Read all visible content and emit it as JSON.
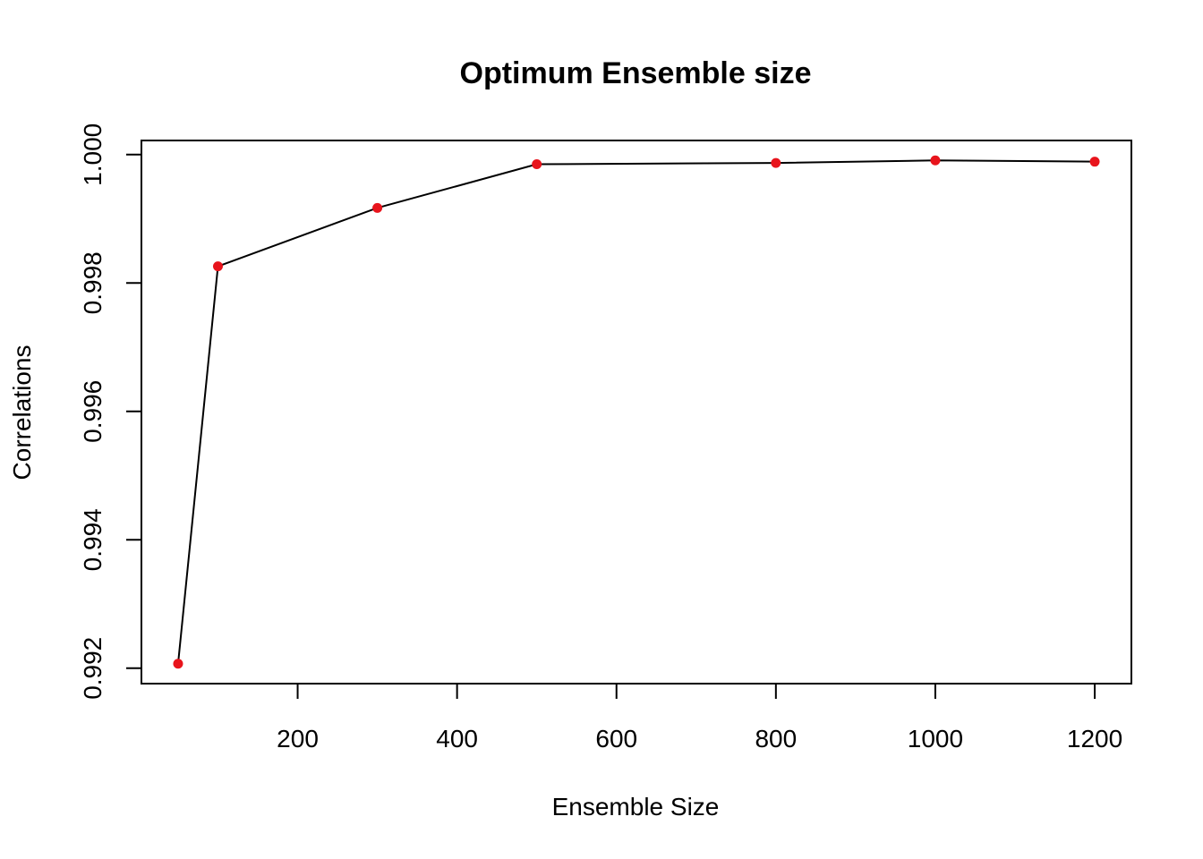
{
  "chart_data": {
    "type": "line",
    "title": "Optimum Ensemble size",
    "xlabel": "Ensemble Size",
    "ylabel": "Correlations",
    "x": [
      50,
      100,
      300,
      500,
      800,
      1000,
      1200
    ],
    "y": [
      0.99207,
      0.99826,
      0.99917,
      0.99985,
      0.99987,
      0.99991,
      0.99989
    ],
    "xlim": [
      4,
      1246
    ],
    "ylim": [
      0.99176,
      1.00022
    ],
    "xticks": [
      200,
      400,
      600,
      800,
      1000,
      1200
    ],
    "xtick_labels": [
      "200",
      "400",
      "600",
      "800",
      "1000",
      "1200"
    ],
    "yticks": [
      0.992,
      0.994,
      0.996,
      0.998,
      1.0
    ],
    "ytick_labels": [
      "0.992",
      "0.994",
      "0.996",
      "0.998",
      "1.000"
    ],
    "point_color": "#e8141c",
    "line_color": "#000000",
    "grid": false,
    "legend": "none"
  }
}
